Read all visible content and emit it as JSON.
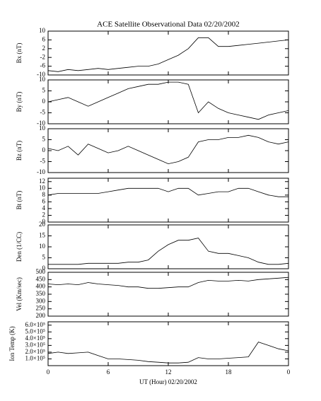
{
  "chart_data": [
    {
      "type": "line",
      "title": "ACE Satellite Observational Data  02/20/2002",
      "ylabel": "Bx (nT)",
      "x": [
        0,
        1,
        2,
        3,
        4,
        5,
        6,
        7,
        8,
        9,
        10,
        11,
        12,
        13,
        14,
        15,
        16,
        17,
        18,
        19,
        20,
        21,
        22,
        23,
        24
      ],
      "values": [
        -8,
        -8.5,
        -7.5,
        -8,
        -7.5,
        -7,
        -7.5,
        -7,
        -6.5,
        -6,
        -6,
        -5,
        -3,
        -1,
        2,
        7,
        7,
        3,
        3,
        3.5,
        4,
        4.5,
        5,
        5.5,
        6
      ],
      "ylim": [
        -10,
        10
      ],
      "yticks": [
        -10,
        -6,
        -2,
        2,
        6,
        10
      ],
      "color": "#000000"
    },
    {
      "type": "line",
      "ylabel": "By (nT)",
      "x": [
        0,
        1,
        2,
        3,
        4,
        5,
        6,
        7,
        8,
        9,
        10,
        11,
        12,
        13,
        14,
        15,
        16,
        17,
        18,
        19,
        20,
        21,
        22,
        23,
        24
      ],
      "values": [
        0,
        1,
        2,
        0,
        -2,
        0,
        2,
        4,
        6,
        7,
        8,
        8,
        9,
        9,
        8,
        -5,
        0,
        -3,
        -5,
        -6,
        -7,
        -8,
        -6,
        -5,
        -4
      ],
      "ylim": [
        -10,
        10
      ],
      "yticks": [
        -10,
        -5,
        0,
        5,
        10
      ],
      "color": "#000000"
    },
    {
      "type": "line",
      "ylabel": "Bz (nT)",
      "x": [
        0,
        1,
        2,
        3,
        4,
        5,
        6,
        7,
        8,
        9,
        10,
        11,
        12,
        13,
        14,
        15,
        16,
        17,
        18,
        19,
        20,
        21,
        22,
        23,
        24
      ],
      "values": [
        1,
        0,
        2,
        -2,
        3,
        1,
        -1,
        0,
        2,
        0,
        -2,
        -4,
        -6,
        -5,
        -3,
        4,
        5,
        5,
        6,
        6,
        7,
        6,
        4,
        3,
        4
      ],
      "ylim": [
        -10,
        10
      ],
      "yticks": [
        -10,
        -5,
        0,
        5,
        10
      ],
      "color": "#000000"
    },
    {
      "type": "line",
      "ylabel": "Bt (nT)",
      "x": [
        0,
        1,
        2,
        3,
        4,
        5,
        6,
        7,
        8,
        9,
        10,
        11,
        12,
        13,
        14,
        15,
        16,
        17,
        18,
        19,
        20,
        21,
        22,
        23,
        24
      ],
      "values": [
        8,
        8.5,
        8.5,
        8.5,
        8.5,
        8.5,
        9,
        9.5,
        10,
        10,
        10,
        10,
        9,
        10,
        10,
        8,
        8.5,
        9,
        9,
        10,
        10,
        9,
        8,
        7.5,
        7.5
      ],
      "ylim": [
        0,
        13
      ],
      "yticks": [
        0,
        2,
        4,
        6,
        8,
        10,
        12
      ],
      "color": "#000000"
    },
    {
      "type": "line",
      "ylabel": "Den (1/CC)",
      "x": [
        0,
        1,
        2,
        3,
        4,
        5,
        6,
        7,
        8,
        9,
        10,
        11,
        12,
        13,
        14,
        15,
        16,
        17,
        18,
        19,
        20,
        21,
        22,
        23,
        24
      ],
      "values": [
        2,
        2,
        2,
        2,
        2.5,
        2.5,
        2.5,
        2.5,
        3,
        3,
        4,
        8,
        11,
        13,
        13,
        14,
        8,
        7,
        7,
        6,
        5,
        3,
        2,
        2,
        2.5
      ],
      "ylim": [
        0,
        20
      ],
      "yticks": [
        0,
        5,
        10,
        15,
        20
      ],
      "color": "#000000"
    },
    {
      "type": "line",
      "ylabel": "Vel (Km/sec)",
      "x": [
        0,
        1,
        2,
        3,
        4,
        5,
        6,
        7,
        8,
        9,
        10,
        11,
        12,
        13,
        14,
        15,
        16,
        17,
        18,
        19,
        20,
        21,
        22,
        23,
        24
      ],
      "values": [
        420,
        415,
        420,
        415,
        430,
        420,
        415,
        410,
        400,
        400,
        390,
        390,
        395,
        400,
        400,
        430,
        445,
        440,
        440,
        445,
        440,
        450,
        455,
        460,
        465
      ],
      "ylim": [
        200,
        500
      ],
      "yticks": [
        200,
        250,
        300,
        350,
        400,
        450,
        500
      ],
      "color": "#000000"
    },
    {
      "type": "line",
      "ylabel": "Ion Temp (K)",
      "xlabel": "UT (Hour)  02/20/2002",
      "x": [
        0,
        1,
        2,
        3,
        4,
        5,
        6,
        7,
        8,
        9,
        10,
        11,
        12,
        13,
        14,
        15,
        16,
        17,
        18,
        19,
        20,
        21,
        22,
        23,
        24
      ],
      "values": [
        180000,
        200000,
        180000,
        190000,
        200000,
        150000,
        100000,
        100000,
        90000,
        80000,
        60000,
        50000,
        40000,
        40000,
        50000,
        120000,
        100000,
        100000,
        110000,
        120000,
        130000,
        350000,
        300000,
        250000,
        220000
      ],
      "ylim": [
        0,
        650000
      ],
      "yticks": [
        {
          "value": 100000,
          "label": "1.0×10⁵"
        },
        {
          "value": 200000,
          "label": "2.0×10⁵"
        },
        {
          "value": 300000,
          "label": "3.0×10⁵"
        },
        {
          "value": 400000,
          "label": "4.0×10⁵"
        },
        {
          "value": 500000,
          "label": "5.0×10⁵"
        },
        {
          "value": 600000,
          "label": "6.0×10⁵"
        }
      ],
      "xlim": [
        0,
        24
      ],
      "xticks": [
        0,
        6,
        12,
        18,
        {
          "value": 24,
          "label": "0"
        }
      ],
      "color": "#000000"
    }
  ]
}
